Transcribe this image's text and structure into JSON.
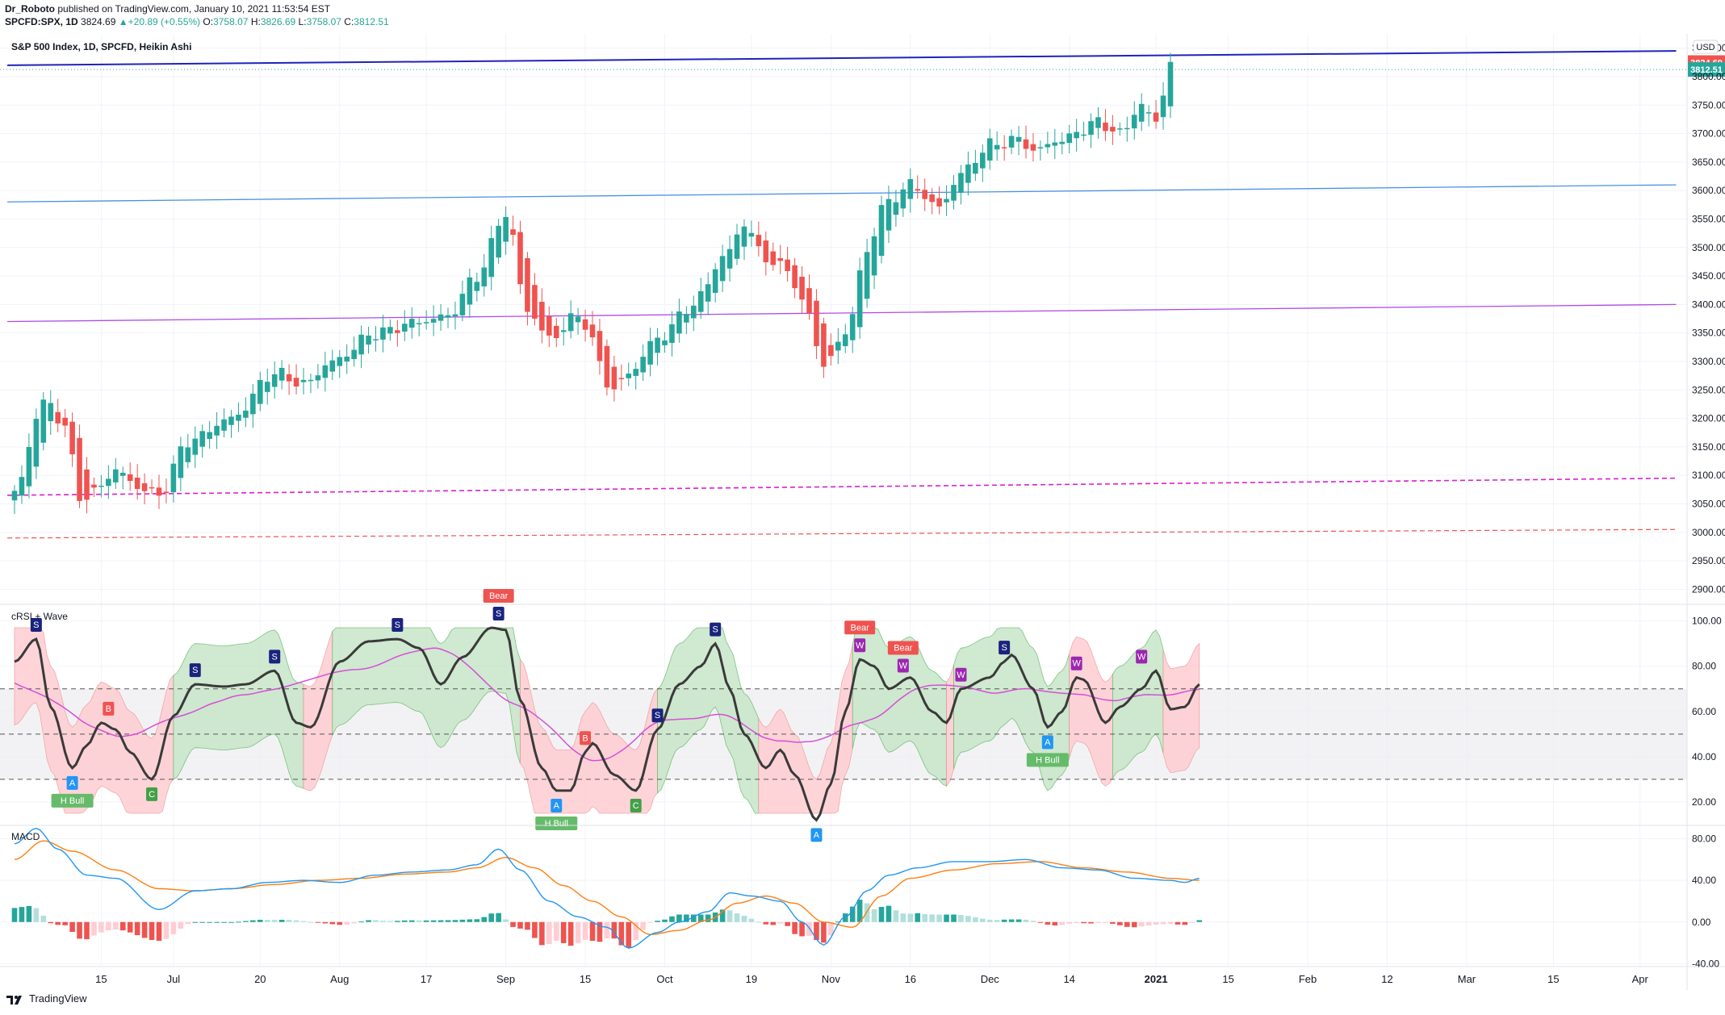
{
  "header": {
    "author": "Dr_Roboto",
    "published": "published on TradingView.com, January 10, 2021 11:53:54 EST",
    "symbol": "SPCFD:SPX, 1D",
    "last": "3824.69",
    "change": "+20.89 (+0.55%)",
    "o_label": "O:",
    "o": "3758.07",
    "h_label": "H:",
    "h": "3826.69",
    "l_label": "L:",
    "l": "3758.07",
    "c_label": "C:",
    "c": "3812.51"
  },
  "footer": {
    "brand": "TradingView"
  },
  "colors": {
    "up": "#26a69a",
    "down": "#ef5350",
    "blue_line": "#1e24b8",
    "light_blue_line": "#4a90e2",
    "purple_line": "#b04be6",
    "magenta_line": "#d920d0",
    "red_dashed": "#ef5350",
    "crsi_line": "#3a3a3a",
    "crsi_avg": "#d64fd6",
    "macd_line": "#2196f3",
    "signal_line": "#ff7f0e",
    "band_green": "#c8e6c9",
    "band_red": "#ffcdd2"
  },
  "chart_data": [
    {
      "type": "candlestick",
      "title": "S&P 500 Index, 1D, SPCFD, Heikin Ashi",
      "currency": "USD",
      "ylim": [
        2875,
        3875
      ],
      "y_ticks": [
        "3850.00",
        "3800.00",
        "3750.00",
        "3700.00",
        "3650.00",
        "3600.00",
        "3550.00",
        "3500.00",
        "3450.00",
        "3400.00",
        "3350.00",
        "3300.00",
        "3250.00",
        "3200.00",
        "3150.00",
        "3100.00",
        "3050.00",
        "3000.00",
        "2950.00",
        "2900.00"
      ],
      "price_labels": [
        {
          "value": 3824.69,
          "text": "3824.69",
          "color": "#ef5350"
        },
        {
          "value": 3812.51,
          "text": "3812.51",
          "color": "#26a69a"
        }
      ],
      "x_ticks": [
        {
          "day": 12,
          "label": "15"
        },
        {
          "day": 22,
          "label": "Jul"
        },
        {
          "day": 34,
          "label": "20"
        },
        {
          "day": 45,
          "label": "Aug"
        },
        {
          "day": 57,
          "label": "17"
        },
        {
          "day": 68,
          "label": "Sep"
        },
        {
          "day": 79,
          "label": "15"
        },
        {
          "day": 90,
          "label": "Oct"
        },
        {
          "day": 102,
          "label": "19"
        },
        {
          "day": 113,
          "label": "Nov"
        },
        {
          "day": 124,
          "label": "16"
        },
        {
          "day": 135,
          "label": "Dec"
        },
        {
          "day": 146,
          "label": "14"
        },
        {
          "day": 158,
          "label": "2021"
        },
        {
          "day": 168,
          "label": "15"
        },
        {
          "day": 179,
          "label": "Feb"
        },
        {
          "day": 190,
          "label": "12"
        },
        {
          "day": 201,
          "label": "Mar"
        },
        {
          "day": 213,
          "label": "15"
        },
        {
          "day": 225,
          "label": "Apr"
        }
      ],
      "anchors": [
        [
          0,
          3070
        ],
        [
          4,
          3230
        ],
        [
          7,
          3190
        ],
        [
          9,
          3060
        ],
        [
          11,
          3070
        ],
        [
          14,
          3110
        ],
        [
          17,
          3080
        ],
        [
          20,
          3065
        ],
        [
          24,
          3160
        ],
        [
          30,
          3200
        ],
        [
          36,
          3280
        ],
        [
          40,
          3260
        ],
        [
          44,
          3300
        ],
        [
          50,
          3350
        ],
        [
          56,
          3370
        ],
        [
          60,
          3380
        ],
        [
          64,
          3450
        ],
        [
          68,
          3560
        ],
        [
          71,
          3390
        ],
        [
          74,
          3340
        ],
        [
          78,
          3380
        ],
        [
          83,
          3250
        ],
        [
          85,
          3280
        ],
        [
          89,
          3340
        ],
        [
          94,
          3400
        ],
        [
          98,
          3480
        ],
        [
          101,
          3540
        ],
        [
          104,
          3480
        ],
        [
          107,
          3460
        ],
        [
          110,
          3380
        ],
        [
          112,
          3290
        ],
        [
          115,
          3350
        ],
        [
          118,
          3490
        ],
        [
          120,
          3570
        ],
        [
          124,
          3610
        ],
        [
          128,
          3570
        ],
        [
          131,
          3630
        ],
        [
          135,
          3680
        ],
        [
          139,
          3690
        ],
        [
          141,
          3670
        ],
        [
          145,
          3690
        ],
        [
          150,
          3720
        ],
        [
          153,
          3700
        ],
        [
          156,
          3750
        ],
        [
          158,
          3720
        ],
        [
          160,
          3825
        ]
      ],
      "levels": [
        {
          "name": "blue resistance",
          "x1": -1,
          "y1": 3820,
          "x2": 230,
          "y2": 3845,
          "color": "#1e24b8",
          "dash": false,
          "width": 2
        },
        {
          "name": "light blue line",
          "x1": -1,
          "y1": 3580,
          "x2": 230,
          "y2": 3610,
          "color": "#4a90e2",
          "dash": false,
          "width": 1.3
        },
        {
          "name": "purple line",
          "x1": -1,
          "y1": 3370,
          "x2": 230,
          "y2": 3400,
          "color": "#b04be6",
          "dash": false,
          "width": 1.3
        },
        {
          "name": "magenta line",
          "x1": -1,
          "y1": 3065,
          "x2": 230,
          "y2": 3095,
          "color": "#d920d0",
          "dash": true,
          "width": 1.6
        },
        {
          "name": "red dashed",
          "x1": -1,
          "y1": 2990,
          "x2": 230,
          "y2": 3005,
          "color": "#ef5350",
          "dash": true,
          "width": 1.2
        }
      ]
    },
    {
      "type": "line",
      "title": "cRSI + Wave",
      "ylim": [
        10,
        107
      ],
      "y_ticks": [
        "100.00",
        "80.00",
        "60.00",
        "40.00",
        "20.00"
      ],
      "reference_lines": [
        70,
        50,
        30
      ],
      "anchors": [
        [
          0,
          82
        ],
        [
          3,
          92
        ],
        [
          5,
          62
        ],
        [
          8,
          35
        ],
        [
          10,
          45
        ],
        [
          12,
          55
        ],
        [
          14,
          52
        ],
        [
          16,
          42
        ],
        [
          19,
          30
        ],
        [
          22,
          58
        ],
        [
          25,
          72
        ],
        [
          29,
          71
        ],
        [
          32,
          72
        ],
        [
          36,
          78
        ],
        [
          39,
          55
        ],
        [
          41,
          53
        ],
        [
          45,
          82
        ],
        [
          49,
          91
        ],
        [
          53,
          92
        ],
        [
          56,
          88
        ],
        [
          59,
          72
        ],
        [
          62,
          84
        ],
        [
          66,
          97
        ],
        [
          68,
          96
        ],
        [
          70,
          65
        ],
        [
          73,
          35
        ],
        [
          75,
          25
        ],
        [
          77,
          25
        ],
        [
          79,
          42
        ],
        [
          80,
          46
        ],
        [
          83,
          32
        ],
        [
          86,
          25
        ],
        [
          89,
          52
        ],
        [
          92,
          72
        ],
        [
          95,
          80
        ],
        [
          97,
          90
        ],
        [
          99,
          70
        ],
        [
          101,
          50
        ],
        [
          104,
          35
        ],
        [
          106,
          43
        ],
        [
          108,
          32
        ],
        [
          111,
          12
        ],
        [
          113,
          28
        ],
        [
          115,
          60
        ],
        [
          117,
          83
        ],
        [
          119,
          80
        ],
        [
          121,
          70
        ],
        [
          124,
          75
        ],
        [
          127,
          60
        ],
        [
          129,
          55
        ],
        [
          131,
          70
        ],
        [
          135,
          75
        ],
        [
          137,
          82
        ],
        [
          138,
          85
        ],
        [
          141,
          70
        ],
        [
          143,
          53
        ],
        [
          145,
          60
        ],
        [
          147,
          75
        ],
        [
          148,
          74
        ],
        [
          151,
          55
        ],
        [
          153,
          62
        ],
        [
          156,
          70
        ],
        [
          158,
          78
        ],
        [
          160,
          61
        ],
        [
          162,
          62
        ],
        [
          164,
          72
        ]
      ],
      "band_segments": [
        {
          "x1": 0,
          "x2": 22,
          "color": "red"
        },
        {
          "x1": 22,
          "x2": 40,
          "color": "green"
        },
        {
          "x1": 40,
          "x2": 44,
          "color": "red"
        },
        {
          "x1": 44,
          "x2": 70,
          "color": "green"
        },
        {
          "x1": 70,
          "x2": 89,
          "color": "red"
        },
        {
          "x1": 89,
          "x2": 103,
          "color": "green"
        },
        {
          "x1": 103,
          "x2": 116,
          "color": "red"
        },
        {
          "x1": 116,
          "x2": 129,
          "color": "green"
        },
        {
          "x1": 129,
          "x2": 130,
          "color": "red"
        },
        {
          "x1": 130,
          "x2": 146,
          "color": "green"
        },
        {
          "x1": 146,
          "x2": 152,
          "color": "red"
        },
        {
          "x1": 152,
          "x2": 159,
          "color": "green"
        },
        {
          "x1": 159,
          "x2": 164,
          "color": "red"
        }
      ],
      "markers": [
        {
          "x": 3,
          "y": 92,
          "text": "S",
          "color": "#1a237e",
          "pos": "above"
        },
        {
          "x": 8,
          "y": 35,
          "text": "A",
          "color": "#2196f3",
          "pos": "below"
        },
        {
          "x": 8,
          "y": 35,
          "text": "H Bull",
          "color": "#66bb6a",
          "pos": "below2"
        },
        {
          "x": 13,
          "y": 55,
          "text": "B",
          "color": "#ef5350",
          "pos": "above"
        },
        {
          "x": 19,
          "y": 30,
          "text": "C",
          "color": "#43a047",
          "pos": "below"
        },
        {
          "x": 25,
          "y": 72,
          "text": "S",
          "color": "#1a237e",
          "pos": "above"
        },
        {
          "x": 36,
          "y": 78,
          "text": "S",
          "color": "#1a237e",
          "pos": "above"
        },
        {
          "x": 53,
          "y": 92,
          "text": "S",
          "color": "#1a237e",
          "pos": "above"
        },
        {
          "x": 67,
          "y": 97,
          "text": "S",
          "color": "#1a237e",
          "pos": "above"
        },
        {
          "x": 67,
          "y": 97,
          "text": "Bear",
          "color": "#ef5350",
          "pos": "above2"
        },
        {
          "x": 75,
          "y": 25,
          "text": "A",
          "color": "#2196f3",
          "pos": "below"
        },
        {
          "x": 75,
          "y": 25,
          "text": "H Bull",
          "color": "#66bb6a",
          "pos": "below2"
        },
        {
          "x": 79,
          "y": 42,
          "text": "B",
          "color": "#ef5350",
          "pos": "above"
        },
        {
          "x": 86,
          "y": 25,
          "text": "C",
          "color": "#43a047",
          "pos": "below"
        },
        {
          "x": 89,
          "y": 52,
          "text": "S",
          "color": "#1a237e",
          "pos": "above"
        },
        {
          "x": 97,
          "y": 90,
          "text": "S",
          "color": "#1a237e",
          "pos": "above"
        },
        {
          "x": 111,
          "y": 12,
          "text": "A",
          "color": "#2196f3",
          "pos": "below"
        },
        {
          "x": 117,
          "y": 83,
          "text": "W",
          "color": "#9c27b0",
          "pos": "above"
        },
        {
          "x": 117,
          "y": 83,
          "text": "Bear",
          "color": "#ef5350",
          "pos": "above2"
        },
        {
          "x": 123,
          "y": 74,
          "text": "W",
          "color": "#9c27b0",
          "pos": "above"
        },
        {
          "x": 123,
          "y": 74,
          "text": "Bear",
          "color": "#ef5350",
          "pos": "above2"
        },
        {
          "x": 131,
          "y": 70,
          "text": "W",
          "color": "#9c27b0",
          "pos": "above"
        },
        {
          "x": 137,
          "y": 82,
          "text": "S",
          "color": "#1a237e",
          "pos": "above"
        },
        {
          "x": 143,
          "y": 53,
          "text": "A",
          "color": "#2196f3",
          "pos": "below"
        },
        {
          "x": 143,
          "y": 53,
          "text": "H Bull",
          "color": "#66bb6a",
          "pos": "below2"
        },
        {
          "x": 147,
          "y": 75,
          "text": "W",
          "color": "#9c27b0",
          "pos": "above"
        },
        {
          "x": 156,
          "y": 78,
          "text": "W",
          "color": "#9c27b0",
          "pos": "above"
        }
      ]
    },
    {
      "type": "line",
      "title": "MACD",
      "ylim": [
        -42,
        92
      ],
      "y_ticks": [
        "80.00",
        "40.00",
        "0.00",
        "-40.00"
      ],
      "macd_anchors": [
        [
          0,
          75
        ],
        [
          3,
          90
        ],
        [
          6,
          70
        ],
        [
          10,
          45
        ],
        [
          14,
          42
        ],
        [
          20,
          12
        ],
        [
          25,
          30
        ],
        [
          30,
          32
        ],
        [
          35,
          38
        ],
        [
          40,
          40
        ],
        [
          45,
          38
        ],
        [
          50,
          45
        ],
        [
          55,
          48
        ],
        [
          60,
          50
        ],
        [
          64,
          55
        ],
        [
          67,
          70
        ],
        [
          70,
          50
        ],
        [
          74,
          20
        ],
        [
          78,
          5
        ],
        [
          82,
          -5
        ],
        [
          85,
          -25
        ],
        [
          89,
          -10
        ],
        [
          92,
          0
        ],
        [
          96,
          10
        ],
        [
          99,
          28
        ],
        [
          102,
          25
        ],
        [
          106,
          20
        ],
        [
          109,
          0
        ],
        [
          112,
          -22
        ],
        [
          115,
          5
        ],
        [
          118,
          30
        ],
        [
          121,
          45
        ],
        [
          125,
          52
        ],
        [
          130,
          58
        ],
        [
          135,
          58
        ],
        [
          140,
          60
        ],
        [
          145,
          52
        ],
        [
          150,
          50
        ],
        [
          155,
          42
        ],
        [
          160,
          40
        ],
        [
          162,
          38
        ],
        [
          164,
          42
        ]
      ],
      "signal_anchors": [
        [
          0,
          60
        ],
        [
          4,
          78
        ],
        [
          8,
          68
        ],
        [
          14,
          50
        ],
        [
          20,
          32
        ],
        [
          25,
          30
        ],
        [
          30,
          32
        ],
        [
          36,
          36
        ],
        [
          42,
          40
        ],
        [
          48,
          42
        ],
        [
          54,
          46
        ],
        [
          60,
          48
        ],
        [
          64,
          52
        ],
        [
          68,
          62
        ],
        [
          72,
          52
        ],
        [
          76,
          35
        ],
        [
          80,
          20
        ],
        [
          84,
          5
        ],
        [
          88,
          -12
        ],
        [
          92,
          -8
        ],
        [
          96,
          2
        ],
        [
          100,
          18
        ],
        [
          104,
          25
        ],
        [
          108,
          18
        ],
        [
          112,
          0
        ],
        [
          116,
          -5
        ],
        [
          120,
          25
        ],
        [
          124,
          42
        ],
        [
          130,
          50
        ],
        [
          136,
          56
        ],
        [
          142,
          58
        ],
        [
          148,
          52
        ],
        [
          154,
          48
        ],
        [
          160,
          42
        ],
        [
          164,
          40
        ]
      ]
    }
  ]
}
